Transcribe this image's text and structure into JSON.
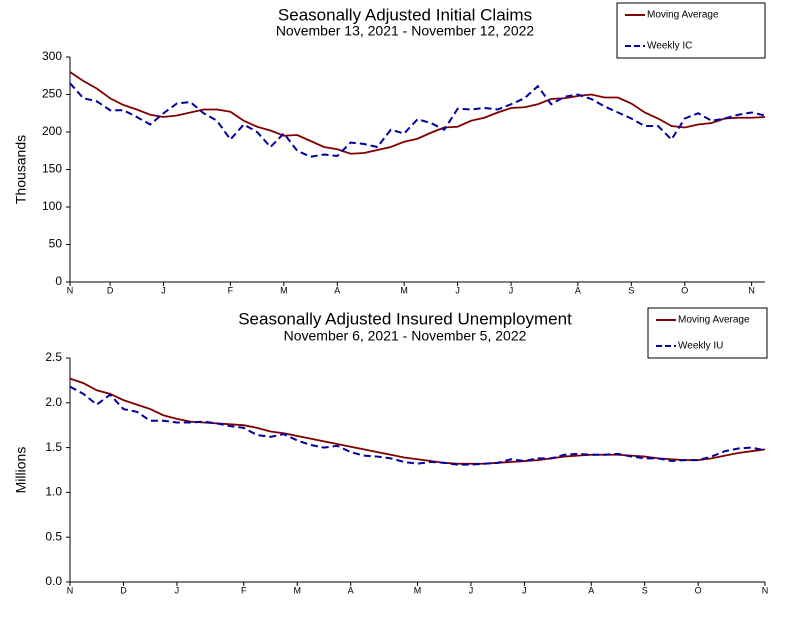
{
  "chart_data": [
    {
      "type": "line",
      "title": "Seasonally Adjusted Initial Claims",
      "subtitle": "November 13, 2021 - November 12, 2022",
      "y_label": "Thousands",
      "categories": [
        "N",
        null,
        null,
        "D",
        null,
        null,
        null,
        "J",
        null,
        null,
        null,
        null,
        "F",
        null,
        null,
        null,
        "M",
        null,
        null,
        null,
        "A",
        null,
        null,
        null,
        null,
        "M",
        null,
        null,
        null,
        "J",
        null,
        null,
        null,
        "J",
        null,
        null,
        null,
        null,
        "A",
        null,
        null,
        null,
        "S",
        null,
        null,
        null,
        "O",
        null,
        null,
        null,
        null,
        "N",
        null
      ],
      "ylim": [
        0,
        300
      ],
      "yticks": [
        0,
        50,
        100,
        150,
        200,
        250,
        300
      ],
      "grid": false,
      "legend": "top-right",
      "series": [
        {
          "name": "Moving Average",
          "color": "#800000",
          "dashed": false,
          "values": [
            280,
            268,
            258,
            245,
            236,
            230,
            223,
            220,
            222,
            226,
            230,
            230,
            227,
            215,
            207,
            202,
            195,
            196,
            188,
            180,
            177,
            171,
            172,
            176,
            180,
            187,
            191,
            199,
            206,
            207,
            215,
            219,
            226,
            232,
            233,
            237,
            244,
            245,
            248,
            250,
            246,
            246,
            238,
            226,
            218,
            208,
            206,
            210,
            212,
            218,
            219,
            219,
            220
          ]
        },
        {
          "name": "Weekly IC",
          "color": "#0000a0",
          "dashed": true,
          "values": [
            265,
            245,
            241,
            229,
            229,
            220,
            210,
            225,
            238,
            240,
            225,
            215,
            190,
            210,
            200,
            180,
            198,
            175,
            167,
            170,
            168,
            186,
            184,
            180,
            203,
            198,
            217,
            212,
            203,
            231,
            230,
            232,
            230,
            237,
            245,
            261,
            237,
            247,
            250,
            244,
            234,
            226,
            218,
            208,
            208,
            190,
            218,
            225,
            215,
            218,
            223,
            226,
            222
          ]
        }
      ]
    },
    {
      "type": "line",
      "title": "Seasonally Adjusted Insured Unemployment",
      "subtitle": "November 6, 2021 - November 5, 2022",
      "y_label": "Millions",
      "categories": [
        "N",
        null,
        null,
        null,
        "D",
        null,
        null,
        null,
        "J",
        null,
        null,
        null,
        null,
        "F",
        null,
        null,
        null,
        "M",
        null,
        null,
        null,
        "A",
        null,
        null,
        null,
        null,
        "M",
        null,
        null,
        null,
        "J",
        null,
        null,
        null,
        "J",
        null,
        null,
        null,
        null,
        "A",
        null,
        null,
        null,
        "S",
        null,
        null,
        null,
        "O",
        null,
        null,
        null,
        null,
        "N"
      ],
      "ylim": [
        0,
        2.5
      ],
      "yticks": [
        {
          "value": 0,
          "label": "0.0"
        },
        0.5,
        {
          "value": 1,
          "label": "1.0"
        },
        1.5,
        {
          "value": 2,
          "label": "2.0"
        },
        2.5
      ],
      "grid": false,
      "legend": "top-right",
      "series": [
        {
          "name": "Moving Average",
          "color": "#800000",
          "dashed": false,
          "values": [
            2.27,
            2.22,
            2.14,
            2.1,
            2.03,
            1.98,
            1.93,
            1.86,
            1.82,
            1.79,
            1.78,
            1.77,
            1.76,
            1.75,
            1.72,
            1.68,
            1.66,
            1.63,
            1.6,
            1.57,
            1.54,
            1.51,
            1.48,
            1.45,
            1.42,
            1.39,
            1.37,
            1.35,
            1.33,
            1.32,
            1.32,
            1.32,
            1.33,
            1.34,
            1.35,
            1.36,
            1.38,
            1.4,
            1.41,
            1.42,
            1.42,
            1.42,
            1.41,
            1.4,
            1.38,
            1.37,
            1.36,
            1.36,
            1.38,
            1.41,
            1.44,
            1.46,
            1.48
          ]
        },
        {
          "name": "Weekly IU",
          "color": "#0000a0",
          "dashed": true,
          "values": [
            2.18,
            2.1,
            1.98,
            2.09,
            1.93,
            1.9,
            1.8,
            1.8,
            1.78,
            1.78,
            1.79,
            1.77,
            1.74,
            1.72,
            1.64,
            1.62,
            1.65,
            1.58,
            1.53,
            1.5,
            1.52,
            1.45,
            1.41,
            1.4,
            1.38,
            1.34,
            1.32,
            1.34,
            1.33,
            1.31,
            1.31,
            1.32,
            1.33,
            1.37,
            1.35,
            1.38,
            1.38,
            1.42,
            1.43,
            1.42,
            1.42,
            1.43,
            1.4,
            1.38,
            1.38,
            1.35,
            1.36,
            1.36,
            1.4,
            1.46,
            1.49,
            1.5,
            1.47
          ]
        }
      ]
    }
  ]
}
